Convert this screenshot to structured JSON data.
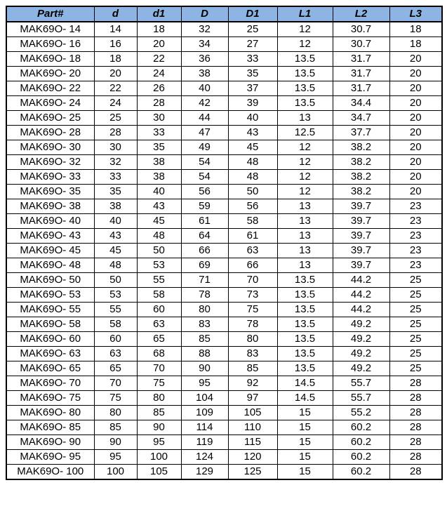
{
  "colors": {
    "header_background": "#8DB4E2",
    "border": "#000000",
    "text": "#000000",
    "row_background": "#FFFFFF"
  },
  "table": {
    "columns": [
      "Part#",
      "d",
      "d1",
      "D",
      "D1",
      "L1",
      "L2",
      "L3"
    ],
    "rows": [
      [
        "MAK69O- 14",
        "14",
        "18",
        "32",
        "25",
        "12",
        "30.7",
        "18"
      ],
      [
        "MAK69O- 16",
        "16",
        "20",
        "34",
        "27",
        "12",
        "30.7",
        "18"
      ],
      [
        "MAK69O- 18",
        "18",
        "22",
        "36",
        "33",
        "13.5",
        "31.7",
        "20"
      ],
      [
        "MAK69O- 20",
        "20",
        "24",
        "38",
        "35",
        "13.5",
        "31.7",
        "20"
      ],
      [
        "MAK69O- 22",
        "22",
        "26",
        "40",
        "37",
        "13.5",
        "31.7",
        "20"
      ],
      [
        "MAK69O- 24",
        "24",
        "28",
        "42",
        "39",
        "13.5",
        "34.4",
        "20"
      ],
      [
        "MAK69O- 25",
        "25",
        "30",
        "44",
        "40",
        "13",
        "34.7",
        "20"
      ],
      [
        "MAK69O- 28",
        "28",
        "33",
        "47",
        "43",
        "12.5",
        "37.7",
        "20"
      ],
      [
        "MAK69O- 30",
        "30",
        "35",
        "49",
        "45",
        "12",
        "38.2",
        "20"
      ],
      [
        "MAK69O- 32",
        "32",
        "38",
        "54",
        "48",
        "12",
        "38.2",
        "20"
      ],
      [
        "MAK69O- 33",
        "33",
        "38",
        "54",
        "48",
        "12",
        "38.2",
        "20"
      ],
      [
        "MAK69O- 35",
        "35",
        "40",
        "56",
        "50",
        "12",
        "38.2",
        "20"
      ],
      [
        "MAK69O- 38",
        "38",
        "43",
        "59",
        "56",
        "13",
        "39.7",
        "23"
      ],
      [
        "MAK69O- 40",
        "40",
        "45",
        "61",
        "58",
        "13",
        "39.7",
        "23"
      ],
      [
        "MAK69O- 43",
        "43",
        "48",
        "64",
        "61",
        "13",
        "39.7",
        "23"
      ],
      [
        "MAK69O- 45",
        "45",
        "50",
        "66",
        "63",
        "13",
        "39.7",
        "23"
      ],
      [
        "MAK69O- 48",
        "48",
        "53",
        "69",
        "66",
        "13",
        "39.7",
        "23"
      ],
      [
        "MAK69O- 50",
        "50",
        "55",
        "71",
        "70",
        "13.5",
        "44.2",
        "25"
      ],
      [
        "MAK69O- 53",
        "53",
        "58",
        "78",
        "73",
        "13.5",
        "44.2",
        "25"
      ],
      [
        "MAK69O- 55",
        "55",
        "60",
        "80",
        "75",
        "13.5",
        "44.2",
        "25"
      ],
      [
        "MAK69O- 58",
        "58",
        "63",
        "83",
        "78",
        "13.5",
        "49.2",
        "25"
      ],
      [
        "MAK69O- 60",
        "60",
        "65",
        "85",
        "80",
        "13.5",
        "49.2",
        "25"
      ],
      [
        "MAK69O- 63",
        "63",
        "68",
        "88",
        "83",
        "13.5",
        "49.2",
        "25"
      ],
      [
        "MAK69O- 65",
        "65",
        "70",
        "90",
        "85",
        "13.5",
        "49.2",
        "25"
      ],
      [
        "MAK69O- 70",
        "70",
        "75",
        "95",
        "92",
        "14.5",
        "55.7",
        "28"
      ],
      [
        "MAK69O- 75",
        "75",
        "80",
        "104",
        "97",
        "14.5",
        "55.7",
        "28"
      ],
      [
        "MAK69O- 80",
        "80",
        "85",
        "109",
        "105",
        "15",
        "55.2",
        "28"
      ],
      [
        "MAK69O- 85",
        "85",
        "90",
        "114",
        "110",
        "15",
        "60.2",
        "28"
      ],
      [
        "MAK69O- 90",
        "90",
        "95",
        "119",
        "115",
        "15",
        "60.2",
        "28"
      ],
      [
        "MAK69O- 95",
        "95",
        "100",
        "124",
        "120",
        "15",
        "60.2",
        "28"
      ],
      [
        "MAK69O- 100",
        "100",
        "105",
        "129",
        "125",
        "15",
        "60.2",
        "28"
      ]
    ]
  }
}
